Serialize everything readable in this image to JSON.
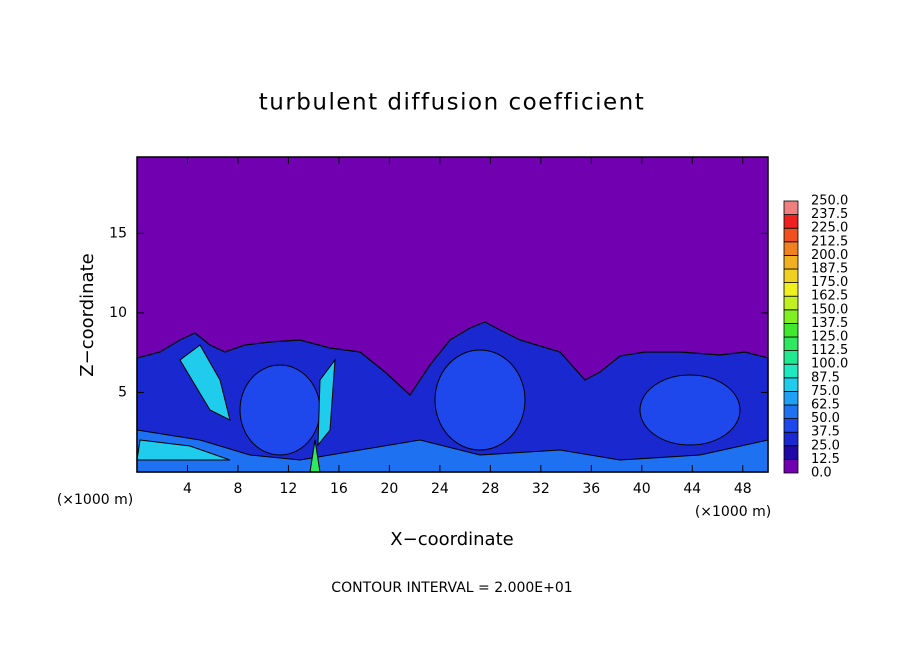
{
  "chart_data": {
    "type": "contour",
    "title": "turbulent diffusion coefficient",
    "xlabel": "X−coordinate",
    "ylabel": "Z−coordinate",
    "xunit": "(×1000 m)",
    "note": "CONTOUR INTERVAL = 2.000E+01",
    "xlim": [
      0,
      50
    ],
    "ylim": [
      0,
      19.8
    ],
    "xticks": [
      4,
      8,
      12,
      16,
      20,
      24,
      28,
      32,
      36,
      40,
      44,
      48
    ],
    "yticks": [
      5,
      10,
      15
    ],
    "colorbar": {
      "ticks": [
        {
          "value": 0,
          "label": "0.0"
        },
        12.5,
        {
          "value": 25,
          "label": "25.0"
        },
        37.5,
        {
          "value": 50,
          "label": "50.0"
        },
        62.5,
        {
          "value": 75,
          "label": "75.0"
        },
        87.5,
        {
          "value": 100,
          "label": "100.0"
        },
        112.5,
        {
          "value": 125,
          "label": "125.0"
        },
        137.5,
        {
          "value": 150,
          "label": "150.0"
        },
        162.5,
        {
          "value": 175,
          "label": "175.0"
        },
        187.5,
        {
          "value": 200,
          "label": "200.0"
        },
        212.5,
        {
          "value": 225,
          "label": "225.0"
        },
        237.5,
        {
          "value": 250,
          "label": "250.0"
        }
      ],
      "colors": [
        "#7000b0",
        "#2008a8",
        "#1a28d0",
        "#1f48ec",
        "#1e72f2",
        "#20a0f4",
        "#20ccec",
        "#20e8c0",
        "#20e890",
        "#30e860",
        "#40e830",
        "#80f020",
        "#c0f020",
        "#f0f020",
        "#f0d020",
        "#f0b020",
        "#f08020",
        "#f05020",
        "#f02020",
        "#f08080"
      ]
    }
  }
}
